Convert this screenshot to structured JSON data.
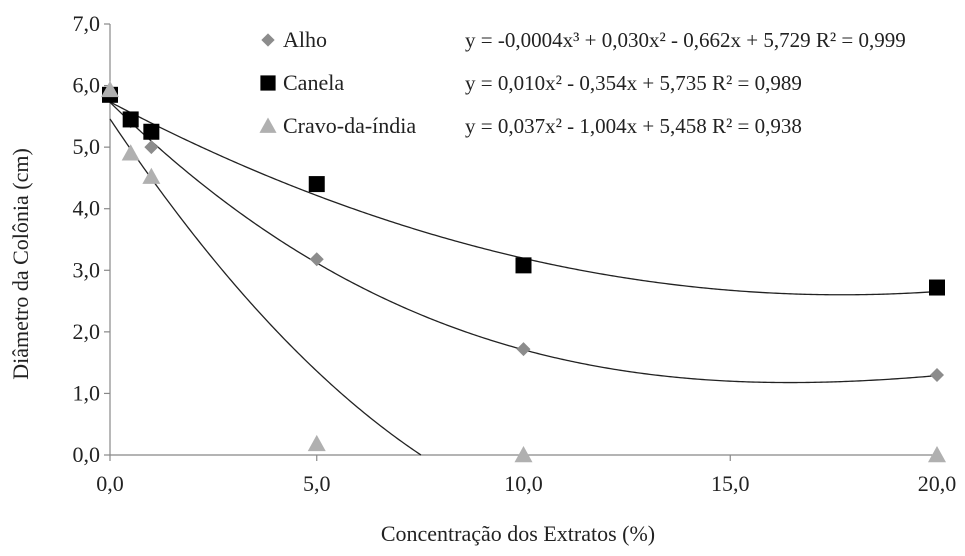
{
  "chart_data": {
    "type": "scatter",
    "xlabel": "Concentração dos Extratos (%)",
    "ylabel": "Diâmetro da Colônia (cm)",
    "xlim": [
      0,
      20
    ],
    "ylim": [
      0,
      7
    ],
    "x_ticks": [
      "0,0",
      "5,0",
      "10,0",
      "15,0",
      "20,0"
    ],
    "y_ticks": [
      "0,0",
      "1,0",
      "2,0",
      "3,0",
      "4,0",
      "5,0",
      "6,0",
      "7,0"
    ],
    "grid": false,
    "legend_position": "top",
    "series": [
      {
        "name": "Alho",
        "marker": "diamond",
        "color": "#8c8c8c",
        "x": [
          0,
          0.5,
          1,
          5,
          10,
          20
        ],
        "y": [
          5.88,
          5.42,
          5.0,
          3.18,
          1.72,
          1.3
        ],
        "trendline": {
          "label": "y = -0,0004x³ + 0,030x² - 0,662x + 5,729 R² = 0,999",
          "coefficients": [
            5.729,
            -0.662,
            0.03,
            -0.0004
          ],
          "r2": 0.999
        }
      },
      {
        "name": "Canela",
        "marker": "square",
        "color": "#000000",
        "x": [
          0,
          0.5,
          1,
          5,
          10,
          20
        ],
        "y": [
          5.85,
          5.45,
          5.25,
          4.4,
          3.08,
          2.72
        ],
        "trendline": {
          "label": "y = 0,010x² - 0,354x + 5,735 R² = 0,989",
          "coefficients": [
            5.735,
            -0.354,
            0.01
          ],
          "r2": 0.989
        }
      },
      {
        "name": "Cravo-da-índia",
        "marker": "triangle",
        "color": "#b0b0b0",
        "x": [
          0,
          0.5,
          1,
          5,
          10,
          20
        ],
        "y": [
          5.93,
          4.9,
          4.52,
          0.18,
          0.0,
          0.0
        ],
        "trendline": {
          "label": "y = 0,037x² - 1,004x + 5,458 R² = 0,938",
          "coefficients": [
            5.458,
            -1.004,
            0.037
          ],
          "r2": 0.938
        }
      }
    ]
  }
}
